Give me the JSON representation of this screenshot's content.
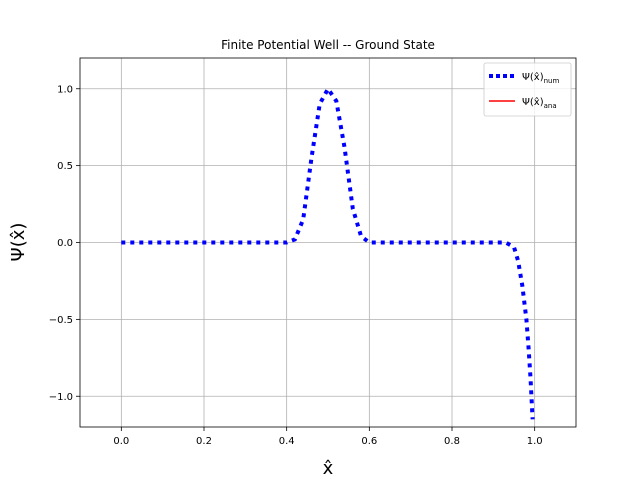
{
  "chart_data": {
    "type": "line",
    "title": "Finite Potential Well -- Ground State",
    "xlabel": "x̂",
    "ylabel": "Ψ(x̂)",
    "xlim": [
      -0.1,
      1.1
    ],
    "ylim": [
      -1.2,
      1.2
    ],
    "grid": true,
    "legend_position": "top-right",
    "x_ticks": [
      0.0,
      0.2,
      0.4,
      0.6,
      0.8,
      1.0
    ],
    "x_tick_labels": [
      "0.0",
      "0.2",
      "0.4",
      "0.6",
      "0.8",
      "1.0"
    ],
    "y_ticks": [
      -1.0,
      -0.5,
      0.0,
      0.5,
      1.0
    ],
    "y_tick_labels": [
      "−1.0",
      "−0.5",
      "0.0",
      "0.5",
      "1.0"
    ],
    "series": [
      {
        "name": "Ψ(x̂)num",
        "name_main": "Ψ(x̂)",
        "name_sub": "num",
        "color": "#0000ff",
        "style": "dotted",
        "x": [
          0.0,
          0.05,
          0.1,
          0.15,
          0.2,
          0.25,
          0.3,
          0.35,
          0.4,
          0.42,
          0.44,
          0.46,
          0.48,
          0.5,
          0.52,
          0.54,
          0.56,
          0.58,
          0.6,
          0.65,
          0.7,
          0.75,
          0.8,
          0.85,
          0.9,
          0.93,
          0.95,
          0.96,
          0.97,
          0.98,
          0.985,
          0.99,
          0.995
        ],
        "y": [
          0.0,
          0.0,
          0.0,
          0.0,
          0.0,
          0.0,
          0.0,
          0.0,
          0.0,
          0.02,
          0.15,
          0.55,
          0.9,
          1.0,
          0.92,
          0.62,
          0.22,
          0.04,
          0.0,
          0.0,
          0.0,
          0.0,
          0.0,
          0.0,
          0.0,
          0.0,
          -0.03,
          -0.12,
          -0.28,
          -0.5,
          -0.68,
          -0.88,
          -1.15
        ]
      },
      {
        "name": "Ψ(x̂)ana",
        "name_main": "Ψ(x̂)",
        "name_sub": "ana",
        "color": "#ff0000",
        "style": "solid",
        "x": [],
        "y": []
      }
    ]
  }
}
